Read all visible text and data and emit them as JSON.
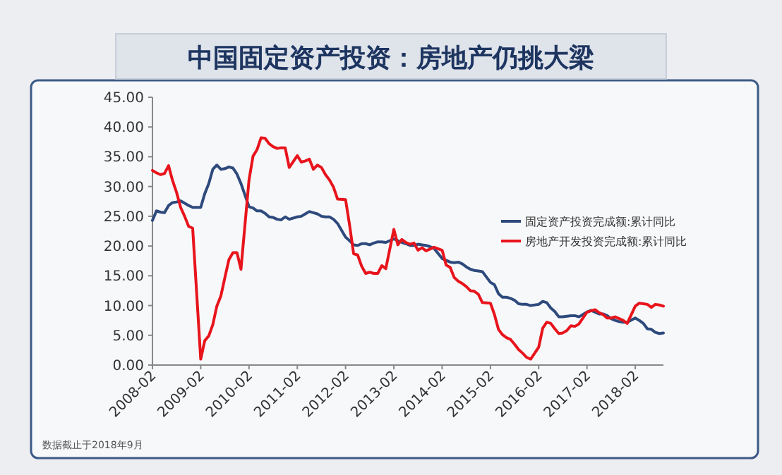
{
  "chart_data": {
    "type": "line",
    "title": "中国固定资产投资：房地产仍挑大梁",
    "annotations": [
      "数据截止于2018年9月"
    ],
    "x": [
      "2008-02",
      "2008-03",
      "2008-04",
      "2008-05",
      "2008-06",
      "2008-07",
      "2008-08",
      "2008-09",
      "2008-10",
      "2008-11",
      "2008-12",
      "2009-02",
      "2009-03",
      "2009-04",
      "2009-05",
      "2009-06",
      "2009-07",
      "2009-08",
      "2009-09",
      "2009-10",
      "2009-11",
      "2009-12",
      "2010-02",
      "2010-03",
      "2010-04",
      "2010-05",
      "2010-06",
      "2010-07",
      "2010-08",
      "2010-09",
      "2010-10",
      "2010-11",
      "2010-12",
      "2011-02",
      "2011-03",
      "2011-04",
      "2011-05",
      "2011-06",
      "2011-07",
      "2011-08",
      "2011-09",
      "2011-10",
      "2011-11",
      "2011-12",
      "2012-02",
      "2012-03",
      "2012-04",
      "2012-05",
      "2012-06",
      "2012-07",
      "2012-08",
      "2012-09",
      "2012-10",
      "2012-11",
      "2012-12",
      "2013-02",
      "2013-03",
      "2013-04",
      "2013-05",
      "2013-06",
      "2013-07",
      "2013-08",
      "2013-09",
      "2013-10",
      "2013-11",
      "2013-12",
      "2014-02",
      "2014-03",
      "2014-04",
      "2014-05",
      "2014-06",
      "2014-07",
      "2014-08",
      "2014-09",
      "2014-10",
      "2014-11",
      "2014-12",
      "2015-02",
      "2015-03",
      "2015-04",
      "2015-05",
      "2015-06",
      "2015-07",
      "2015-08",
      "2015-09",
      "2015-10",
      "2015-11",
      "2015-12",
      "2016-02",
      "2016-03",
      "2016-04",
      "2016-05",
      "2016-06",
      "2016-07",
      "2016-08",
      "2016-09",
      "2016-10",
      "2016-11",
      "2016-12",
      "2017-02",
      "2017-03",
      "2017-04",
      "2017-05",
      "2017-06",
      "2017-07",
      "2017-08",
      "2017-09",
      "2017-10",
      "2017-11",
      "2017-12",
      "2018-02",
      "2018-03",
      "2018-04",
      "2018-05",
      "2018-06",
      "2018-07",
      "2018-08",
      "2018-09"
    ],
    "series": [
      {
        "name": "固定资产投资完成额:累计同比",
        "color": "#2e4a7d",
        "values": [
          24.3,
          25.9,
          25.7,
          25.6,
          26.8,
          27.3,
          27.4,
          27.6,
          27.2,
          26.8,
          26.5,
          26.5,
          28.8,
          30.5,
          32.9,
          33.6,
          32.9,
          33.0,
          33.3,
          33.1,
          32.1,
          30.5,
          26.6,
          26.4,
          25.9,
          25.9,
          25.5,
          24.9,
          24.8,
          24.5,
          24.4,
          24.9,
          24.5,
          24.9,
          25.0,
          25.4,
          25.8,
          25.6,
          25.4,
          25.0,
          24.9,
          24.9,
          24.5,
          23.8,
          21.5,
          20.9,
          20.2,
          20.1,
          20.4,
          20.4,
          20.2,
          20.5,
          20.7,
          20.7,
          20.6,
          21.2,
          20.9,
          20.6,
          20.4,
          20.1,
          20.1,
          20.3,
          20.2,
          20.1,
          19.9,
          19.6,
          17.9,
          17.6,
          17.3,
          17.2,
          17.3,
          17.0,
          16.5,
          16.1,
          15.9,
          15.8,
          15.7,
          13.9,
          13.5,
          12.0,
          11.4,
          11.4,
          11.2,
          10.9,
          10.3,
          10.2,
          10.2,
          10.0,
          10.2,
          10.7,
          10.5,
          9.6,
          9.0,
          8.1,
          8.1,
          8.2,
          8.3,
          8.3,
          8.1,
          8.9,
          9.2,
          8.9,
          8.6,
          8.6,
          8.3,
          7.8,
          7.5,
          7.3,
          7.2,
          7.2,
          7.9,
          7.5,
          7.0,
          6.1,
          6.0,
          5.5,
          5.3,
          5.4
        ]
      },
      {
        "name": "房地产开发投资完成额:累计同比",
        "color": "#e8141c",
        "values": [
          32.7,
          32.3,
          32.0,
          32.2,
          33.5,
          31.0,
          29.0,
          26.5,
          25.0,
          23.3,
          23.0,
          1.0,
          4.1,
          4.9,
          6.8,
          9.9,
          11.6,
          14.7,
          17.7,
          18.9,
          18.9,
          16.1,
          31.1,
          35.1,
          36.2,
          38.2,
          38.1,
          37.2,
          36.7,
          36.4,
          36.5,
          36.5,
          33.2,
          35.2,
          34.1,
          34.3,
          34.6,
          32.9,
          33.6,
          33.2,
          32.0,
          31.1,
          29.9,
          27.9,
          27.8,
          23.5,
          18.7,
          18.5,
          16.6,
          15.4,
          15.6,
          15.4,
          15.4,
          16.7,
          16.2,
          22.8,
          20.2,
          21.1,
          20.6,
          20.3,
          20.5,
          19.3,
          19.7,
          19.2,
          19.5,
          19.8,
          19.3,
          16.8,
          16.4,
          14.7,
          14.1,
          13.7,
          13.2,
          12.5,
          12.4,
          11.9,
          10.5,
          10.4,
          8.5,
          6.0,
          5.1,
          4.6,
          4.3,
          3.5,
          2.6,
          2.0,
          1.3,
          1.0,
          3.0,
          6.2,
          7.2,
          7.0,
          6.1,
          5.3,
          5.4,
          5.8,
          6.6,
          6.5,
          6.9,
          8.9,
          9.1,
          9.3,
          8.8,
          8.5,
          7.9,
          7.9,
          8.1,
          7.8,
          7.5,
          7.0,
          9.9,
          10.4,
          10.3,
          10.2,
          9.7,
          10.2,
          10.1,
          9.9
        ]
      }
    ],
    "xlim": [
      "2008-02",
      "2018-09"
    ],
    "xticks": [
      "2008-02",
      "2009-02",
      "2010-02",
      "2011-02",
      "2012-02",
      "2013-02",
      "2014-02",
      "2015-02",
      "2016-02",
      "2017-02",
      "2018-02"
    ],
    "ylim": [
      0,
      45
    ],
    "yticks": [
      {
        "value": 0,
        "label": "0.00"
      },
      {
        "value": 5,
        "label": "5.00"
      },
      {
        "value": 10,
        "label": "10.00"
      },
      {
        "value": 15,
        "label": "15.00"
      },
      {
        "value": 20,
        "label": "20.00"
      },
      {
        "value": 25,
        "label": "25.00"
      },
      {
        "value": 30,
        "label": "30.00"
      },
      {
        "value": 35,
        "label": "35.00"
      },
      {
        "value": 40,
        "label": "40.00"
      },
      {
        "value": 45,
        "label": "45.00"
      }
    ],
    "legend": "right",
    "grid": false,
    "marker": "none",
    "line_style": "solid"
  }
}
